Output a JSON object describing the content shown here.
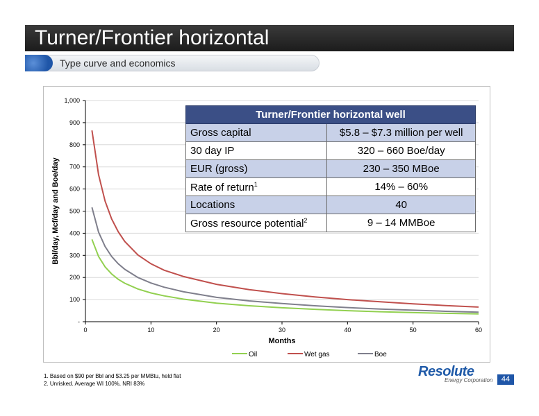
{
  "slide": {
    "title": "Turner/Frontier horizontal",
    "subtitle": "Type curve and economics",
    "page_number": "44"
  },
  "table": {
    "header": "Turner/Frontier horizontal well",
    "rows": [
      {
        "label": "Gross capital",
        "sup": "",
        "value": "$5.8 – $7.3 million per well"
      },
      {
        "label": "30 day IP",
        "sup": "",
        "value": "320 – 660 Boe/day"
      },
      {
        "label": "EUR (gross)",
        "sup": "",
        "value": "230 – 350 MBoe"
      },
      {
        "label": "Rate of return",
        "sup": "1",
        "value": "14% – 60%"
      },
      {
        "label": "Locations",
        "sup": "",
        "value": "40"
      },
      {
        "label": "Gross resource potential",
        "sup": "2",
        "value": "9 – 14 MMBoe"
      }
    ]
  },
  "footnotes": [
    "1. Based on $90 per Bbl and $3.25 per MMBtu, held flat",
    "2. Unrisked. Average WI 100%, NRI 83%"
  ],
  "logo": {
    "name": "Resolute",
    "tagline": "Energy Corporation"
  },
  "chart_data": {
    "type": "line",
    "xlabel": "Months",
    "ylabel": "Bbl/day, Mcf/day and Boe/day",
    "xlim": [
      0,
      60
    ],
    "ylim": [
      0,
      1000
    ],
    "x_ticks": [
      "0",
      "10",
      "20",
      "30",
      "40",
      "50",
      "60"
    ],
    "y_ticks": [
      "-",
      "100",
      "200",
      "300",
      "400",
      "500",
      "600",
      "700",
      "800",
      "900",
      "1,000"
    ],
    "x": [
      1,
      2,
      3,
      4,
      5,
      6,
      8,
      10,
      12,
      15,
      20,
      25,
      30,
      35,
      40,
      45,
      50,
      55,
      60
    ],
    "series": [
      {
        "name": "Oil",
        "color": "#92d050",
        "values": [
          372,
          295,
          248,
          216,
          192,
          174,
          148,
          130,
          117,
          102,
          84,
          72,
          63,
          56,
          50,
          45,
          41,
          38,
          35
        ]
      },
      {
        "name": "Wet gas",
        "color": "#c0504d",
        "values": [
          865,
          665,
          545,
          465,
          407,
          363,
          302,
          262,
          233,
          204,
          169,
          145,
          127,
          112,
          100,
          90,
          81,
          73,
          66
        ]
      },
      {
        "name": "Boe",
        "color": "#7f7f8c",
        "values": [
          517,
          405,
          340,
          295,
          262,
          237,
          200,
          175,
          156,
          135,
          110,
          94,
          82,
          72,
          64,
          57,
          52,
          47,
          43
        ]
      }
    ],
    "legend_position": "bottom"
  }
}
